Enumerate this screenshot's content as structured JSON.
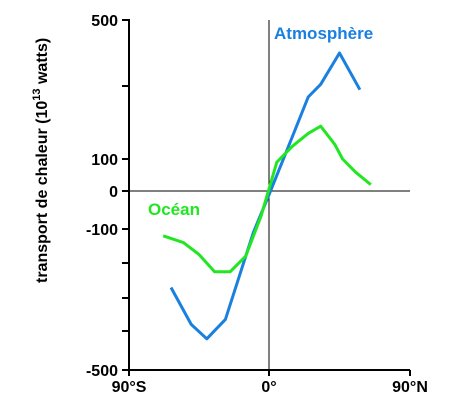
{
  "chart_data": {
    "type": "line",
    "ylabel": {
      "prefix": "transport de chaleur (10",
      "exponent": "13",
      "suffix": " watts)"
    },
    "x_axis": {
      "range": [
        -90,
        90
      ],
      "ticks": [
        {
          "value": -90,
          "label": "90°S"
        },
        {
          "value": 0,
          "label": "0°"
        },
        {
          "value": 90,
          "label": "90°N"
        }
      ]
    },
    "y_axis": {
      "range": [
        -500,
        500
      ],
      "ticks": [
        {
          "value": 500,
          "label": "500"
        },
        {
          "value": 300,
          "label": ""
        },
        {
          "value": 100,
          "label": "100"
        },
        {
          "value": 0,
          "label": "0"
        },
        {
          "value": -100,
          "label": "-100"
        },
        {
          "value": -200,
          "label": ""
        },
        {
          "value": -300,
          "label": ""
        },
        {
          "value": -400,
          "label": ""
        },
        {
          "value": -500,
          "label": "-500"
        }
      ]
    },
    "grid": false,
    "series": [
      {
        "name": "Atmosphère",
        "color": "#1a80e0",
        "points": [
          [
            -63,
            -270
          ],
          [
            -50,
            -380
          ],
          [
            -40,
            -420
          ],
          [
            -28,
            -365
          ],
          [
            -10,
            -110
          ],
          [
            0,
            -10
          ],
          [
            12,
            130
          ],
          [
            25,
            270
          ],
          [
            33,
            305
          ],
          [
            45,
            400
          ],
          [
            58,
            290
          ]
        ]
      },
      {
        "name": "Océan",
        "color": "#22e622",
        "points": [
          [
            -68,
            -120
          ],
          [
            -55,
            -140
          ],
          [
            -45,
            -175
          ],
          [
            -35,
            -225
          ],
          [
            -25,
            -225
          ],
          [
            -15,
            -180
          ],
          [
            -5,
            -65
          ],
          [
            5,
            90
          ],
          [
            15,
            135
          ],
          [
            25,
            170
          ],
          [
            33,
            190
          ],
          [
            42,
            140
          ],
          [
            47,
            100
          ],
          [
            55,
            60
          ],
          [
            65,
            20
          ]
        ]
      }
    ]
  }
}
